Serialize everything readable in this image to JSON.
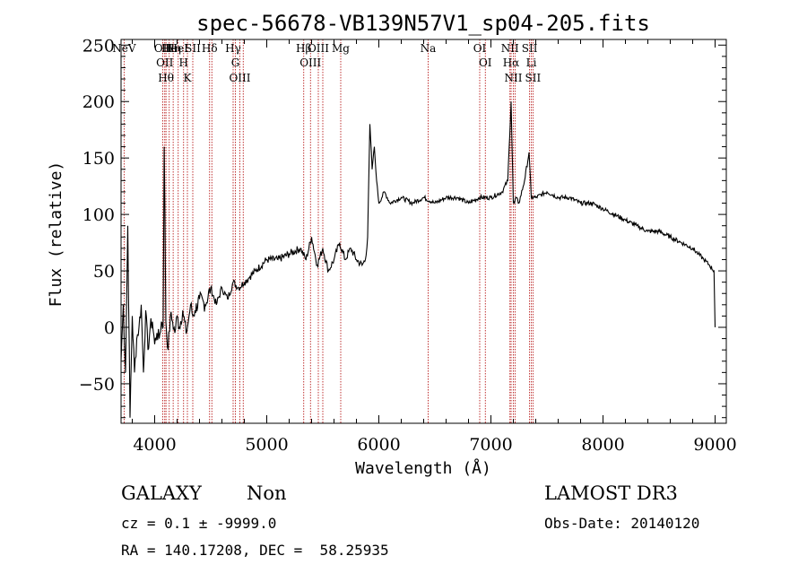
{
  "chart_data": {
    "type": "line",
    "title": "spec-56678-VB139N57V1_sp04-205.fits",
    "xlabel": "Wavelength (Å)",
    "ylabel": "Flux (relative)",
    "xlim": [
      3700,
      9100
    ],
    "ylim": [
      -85,
      255
    ],
    "xticks": [
      4000,
      5000,
      6000,
      7000,
      8000,
      9000
    ],
    "yticks": [
      -50,
      0,
      50,
      100,
      150,
      200,
      250
    ],
    "series": [
      {
        "name": "spectrum",
        "x": [
          3700,
          3720,
          3740,
          3760,
          3780,
          3800,
          3820,
          3840,
          3860,
          3880,
          3900,
          3920,
          3940,
          3960,
          3980,
          4000,
          4020,
          4040,
          4060,
          4075,
          4085,
          4100,
          4120,
          4140,
          4160,
          4180,
          4200,
          4220,
          4250,
          4280,
          4300,
          4320,
          4340,
          4360,
          4400,
          4450,
          4500,
          4550,
          4600,
          4650,
          4700,
          4750,
          4800,
          4850,
          4900,
          5000,
          5100,
          5200,
          5300,
          5350,
          5400,
          5450,
          5500,
          5550,
          5600,
          5650,
          5700,
          5750,
          5800,
          5850,
          5880,
          5900,
          5920,
          5940,
          5960,
          5980,
          6000,
          6050,
          6100,
          6200,
          6300,
          6400,
          6500,
          6600,
          6700,
          6800,
          6900,
          7000,
          7100,
          7150,
          7180,
          7200,
          7210,
          7220,
          7250,
          7300,
          7340,
          7360,
          7400,
          7500,
          7600,
          7700,
          7800,
          7900,
          8000,
          8100,
          8200,
          8300,
          8400,
          8500,
          8600,
          8700,
          8800,
          8850,
          8900,
          8950,
          8990,
          9000
        ],
        "values": [
          -30,
          20,
          -40,
          90,
          -80,
          10,
          -40,
          -10,
          0,
          20,
          -40,
          15,
          -20,
          0,
          5,
          -15,
          -5,
          -10,
          5,
          0,
          160,
          5,
          -20,
          10,
          5,
          -5,
          10,
          0,
          15,
          -5,
          5,
          20,
          10,
          15,
          25,
          20,
          35,
          20,
          35,
          25,
          40,
          35,
          40,
          45,
          50,
          60,
          60,
          65,
          70,
          60,
          80,
          55,
          70,
          50,
          60,
          75,
          60,
          70,
          60,
          55,
          60,
          80,
          180,
          140,
          160,
          130,
          110,
          120,
          110,
          115,
          110,
          115,
          110,
          115,
          115,
          110,
          115,
          115,
          120,
          130,
          200,
          110,
          110,
          115,
          110,
          130,
          155,
          115,
          115,
          120,
          115,
          115,
          110,
          110,
          105,
          100,
          95,
          90,
          85,
          85,
          80,
          75,
          70,
          65,
          60,
          55,
          50,
          0
        ]
      }
    ],
    "lines": [
      {
        "x": 3727,
        "label": "NeV"
      },
      {
        "x": 4072,
        "label": "OII"
      },
      {
        "x": 4090,
        "label": "OII"
      },
      {
        "x": 4101,
        "label": "Hθ"
      },
      {
        "x": 4130,
        "label": "He"
      },
      {
        "x": 4165,
        "label": "Hη"
      },
      {
        "x": 4210,
        "label": "HeI"
      },
      {
        "x": 4258,
        "label": "H"
      },
      {
        "x": 4292,
        "label": "K"
      },
      {
        "x": 4340,
        "label": "SII"
      },
      {
        "x": 4490,
        "label": "Hδ"
      },
      {
        "x": 4510,
        "label": ""
      },
      {
        "x": 4700,
        "label": "Hγ"
      },
      {
        "x": 4720,
        "label": "G"
      },
      {
        "x": 4760,
        "label": "OIII"
      },
      {
        "x": 4790,
        "label": ""
      },
      {
        "x": 5330,
        "label": "Hβ"
      },
      {
        "x": 5390,
        "label": "OIII"
      },
      {
        "x": 5460,
        "label": "OIII"
      },
      {
        "x": 5500,
        "label": ""
      },
      {
        "x": 5660,
        "label": "Mg"
      },
      {
        "x": 6440,
        "label": "Na"
      },
      {
        "x": 6900,
        "label": "OI"
      },
      {
        "x": 6950,
        "label": "OI"
      },
      {
        "x": 7170,
        "label": "NII"
      },
      {
        "x": 7180,
        "label": "Hα"
      },
      {
        "x": 7200,
        "label": "NII"
      },
      {
        "x": 7215,
        "label": ""
      },
      {
        "x": 7345,
        "label": "SII"
      },
      {
        "x": 7360,
        "label": "Li"
      },
      {
        "x": 7375,
        "label": "SII"
      }
    ]
  },
  "info": {
    "object_class": "GALAXY",
    "subclass": "Non",
    "survey": "LAMOST DR3",
    "redshift": "cz = 0.1 ± -9999.0",
    "obs_date": "Obs-Date: 20140120",
    "coords": "RA = 140.17208, DEC =  58.25935"
  }
}
